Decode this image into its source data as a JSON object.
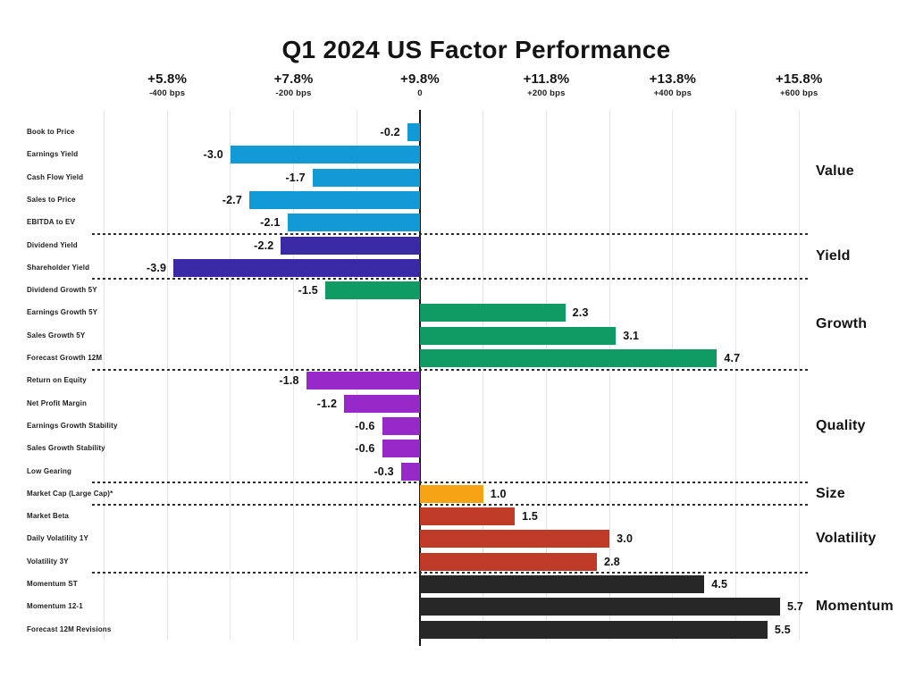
{
  "title": "Q1 2024 US Factor Performance",
  "axis": {
    "ticks": [
      {
        "pct": "+5.8%",
        "bps": "-400 bps",
        "units": -4
      },
      {
        "pct": "+7.8%",
        "bps": "-200 bps",
        "units": -2
      },
      {
        "pct": "+9.8%",
        "bps": "0",
        "units": 0
      },
      {
        "pct": "+11.8%",
        "bps": "+200 bps",
        "units": 2
      },
      {
        "pct": "+13.8%",
        "bps": "+400 bps",
        "units": 4
      },
      {
        "pct": "+15.8%",
        "bps": "+600 bps",
        "units": 6
      }
    ]
  },
  "chart_data": {
    "type": "bar",
    "orientation": "horizontal",
    "title": "Q1 2024 US Factor Performance",
    "unit_note": "1.0 bar unit = 100 bps",
    "xlim": [
      -5,
      6
    ],
    "grid": true,
    "groups": [
      {
        "name": "Value",
        "color": "#129ad6",
        "bars": [
          {
            "label": "Book to Price",
            "value": -0.2
          },
          {
            "label": "Earnings Yield",
            "value": -3.0
          },
          {
            "label": "Cash Flow Yield",
            "value": -1.7
          },
          {
            "label": "Sales to Price",
            "value": -2.7
          },
          {
            "label": "EBITDA to EV",
            "value": -2.1
          }
        ]
      },
      {
        "name": "Yield",
        "color": "#3a2aa5",
        "bars": [
          {
            "label": "Dividend Yield",
            "value": -2.2
          },
          {
            "label": "Shareholder Yield",
            "value": -3.9
          }
        ]
      },
      {
        "name": "Growth",
        "color": "#0f9b63",
        "bars": [
          {
            "label": "Dividend Growth 5Y",
            "value": -1.5
          },
          {
            "label": "Earnings Growth 5Y",
            "value": 2.3
          },
          {
            "label": "Sales Growth 5Y",
            "value": 3.1
          },
          {
            "label": "Forecast Growth 12M",
            "value": 4.7
          }
        ]
      },
      {
        "name": "Quality",
        "color": "#9729c9",
        "bars": [
          {
            "label": "Return on Equity",
            "value": -1.8
          },
          {
            "label": "Net Profit Margin",
            "value": -1.2
          },
          {
            "label": "Earnings Growth Stability",
            "value": -0.6
          },
          {
            "label": "Sales Growth Stability",
            "value": -0.6
          },
          {
            "label": "Low Gearing",
            "value": -0.3
          }
        ]
      },
      {
        "name": "Size",
        "color": "#f6a316",
        "bars": [
          {
            "label": "Market Cap (Large Cap)*",
            "value": 1.0
          }
        ]
      },
      {
        "name": "Volatility",
        "color": "#c03a28",
        "bars": [
          {
            "label": "Market Beta",
            "value": 1.5
          },
          {
            "label": "Daily Volatility 1Y",
            "value": 3.0
          },
          {
            "label": "Volatility 3Y",
            "value": 2.8
          }
        ]
      },
      {
        "name": "Momentum",
        "color": "#272727",
        "bars": [
          {
            "label": "Momentum ST",
            "value": 4.5
          },
          {
            "label": "Momentum 12-1",
            "value": 5.7
          },
          {
            "label": "Forecast 12M Revisions",
            "value": 5.5
          }
        ]
      }
    ]
  }
}
